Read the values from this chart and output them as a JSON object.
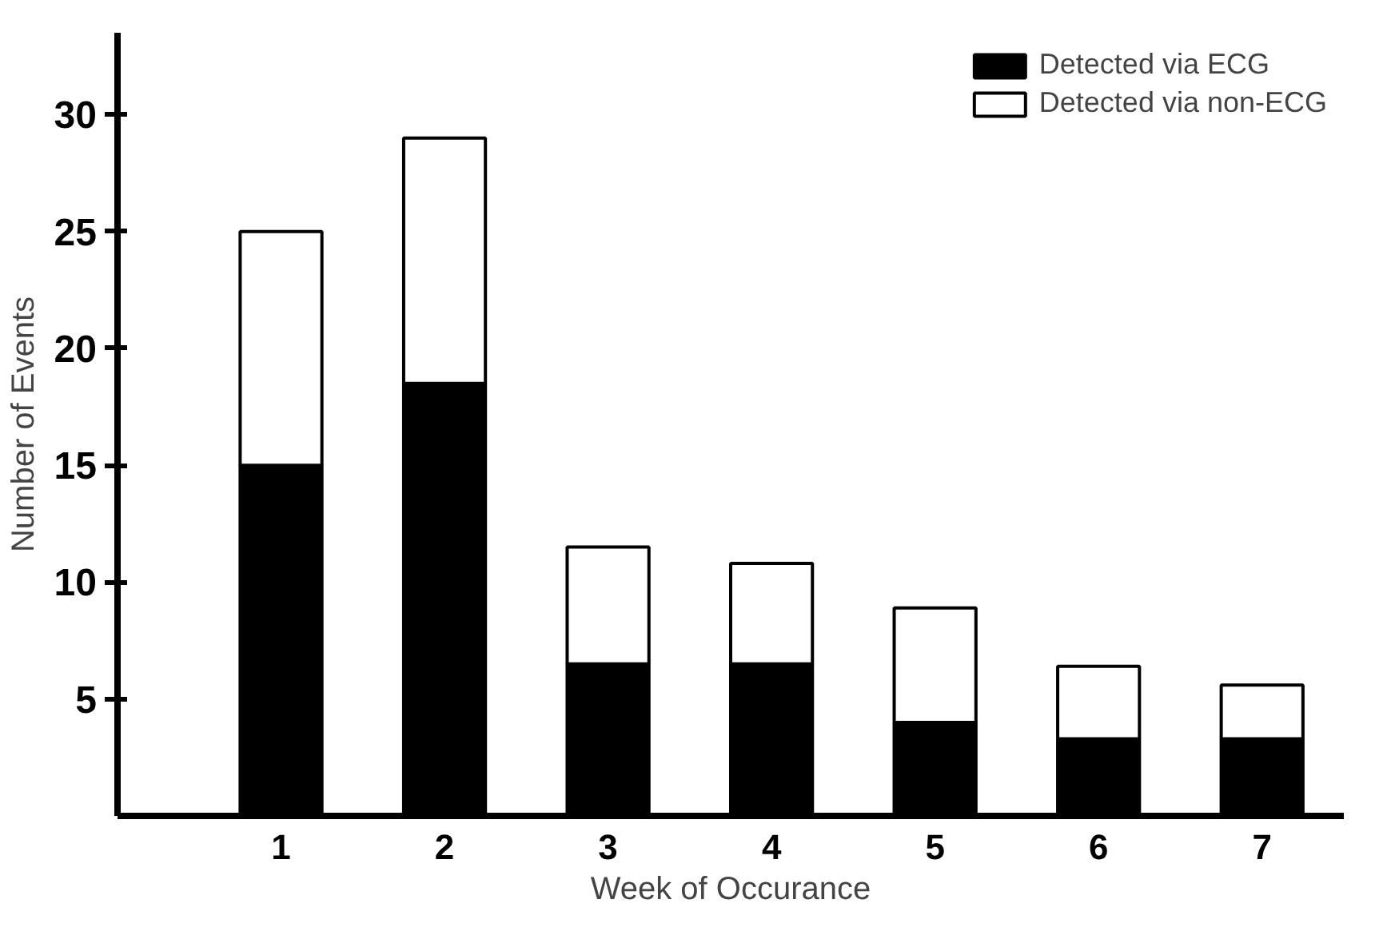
{
  "chart_data": {
    "type": "bar",
    "stacked": true,
    "xlabel": "Week of Occurance",
    "ylabel": "Number of Events",
    "categories": [
      "1",
      "2",
      "3",
      "4",
      "5",
      "6",
      "7"
    ],
    "series": [
      {
        "name": "Detected via ECG",
        "color": "#000000",
        "values": [
          15,
          18.5,
          6.5,
          6.5,
          4,
          3.3,
          3.3
        ]
      },
      {
        "name": "Detected via non-ECG",
        "color": "#ffffff",
        "values": [
          10,
          10.5,
          5,
          4.3,
          4.9,
          3.1,
          2.3
        ]
      }
    ],
    "ylim": [
      0,
      33.5
    ],
    "yticks": [
      5,
      10,
      15,
      20,
      25,
      30
    ],
    "grid": false,
    "legend": "top right"
  }
}
